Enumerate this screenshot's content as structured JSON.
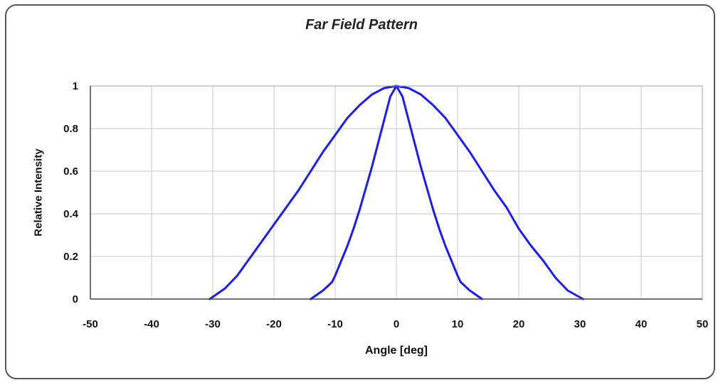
{
  "chart_data": {
    "type": "line",
    "title": "Far Field Pattern",
    "xlabel": "Angle [deg]",
    "ylabel": "Relative Intensity",
    "xlim": [
      -50,
      50
    ],
    "ylim": [
      0,
      1
    ],
    "xticks": [
      "-50",
      "-40",
      "-30",
      "-20",
      "-10",
      "0",
      "10",
      "20",
      "30",
      "40",
      "50"
    ],
    "yticks": [
      "0",
      "0.2",
      "0.4",
      "0.6",
      "0.8",
      "1"
    ],
    "grid": true,
    "series_color": "#1a1aff",
    "series": [
      {
        "x": [
          -30.5,
          -28,
          -26,
          -24,
          -22,
          -20,
          -18,
          -16,
          -14,
          -12,
          -10,
          -8,
          -6,
          -4,
          -2,
          0,
          2,
          4,
          6,
          8,
          10,
          12,
          14,
          16,
          18,
          20,
          22,
          24,
          26,
          28,
          30.5
        ],
        "y": [
          0,
          0.05,
          0.11,
          0.19,
          0.27,
          0.35,
          0.43,
          0.51,
          0.6,
          0.69,
          0.77,
          0.85,
          0.91,
          0.96,
          0.99,
          1.0,
          0.99,
          0.96,
          0.91,
          0.85,
          0.77,
          0.69,
          0.6,
          0.51,
          0.43,
          0.33,
          0.25,
          0.18,
          0.1,
          0.04,
          0
        ]
      },
      {
        "x": [
          -14,
          -12,
          -10.5,
          -10,
          -9,
          -8,
          -7,
          -6,
          -5,
          -4,
          -3,
          -2,
          -1,
          0,
          1,
          2,
          3,
          4,
          5,
          6,
          7,
          8,
          9,
          10,
          10.5,
          12,
          14
        ],
        "y": [
          0,
          0.04,
          0.08,
          0.11,
          0.18,
          0.25,
          0.33,
          0.42,
          0.52,
          0.62,
          0.73,
          0.84,
          0.95,
          1.0,
          0.95,
          0.84,
          0.73,
          0.62,
          0.52,
          0.42,
          0.33,
          0.25,
          0.18,
          0.11,
          0.08,
          0.04,
          0
        ]
      }
    ]
  }
}
